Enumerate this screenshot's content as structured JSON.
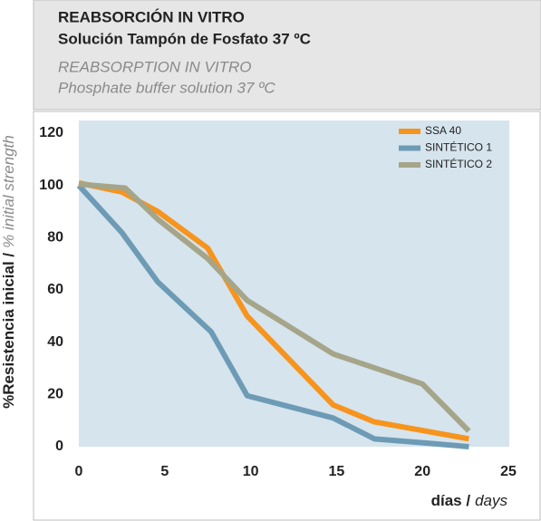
{
  "chart_data": {
    "type": "line",
    "title": "REABSORCIÓN IN VITRO",
    "subtitle": "Solución Tampón de Fosfato 37 ºC",
    "title_en": "REABSORPTION IN VITRO",
    "subtitle_en": "Phosphate buffer solution 37 ºC",
    "ylabel": "%Resistencia inicial /",
    "ylabel_en": "% initial strength",
    "xlabel": "días /",
    "xlabel_en": "days",
    "xlim": [
      0,
      25
    ],
    "xticks": [
      0,
      5,
      10,
      15,
      20,
      25
    ],
    "ylim": [
      0,
      120
    ],
    "yticks": [
      0,
      20,
      40,
      60,
      80,
      100,
      120
    ],
    "grid": false,
    "legend": "top-right",
    "series": [
      {
        "name": "SSA 40",
        "color": "#f7941d",
        "x": [
          0,
          2.5,
          4.6,
          7.5,
          9.8,
          14.8,
          17.2,
          22.7
        ],
        "values": [
          101,
          97.5,
          90,
          76,
          50,
          16,
          9.5,
          3
        ]
      },
      {
        "name": "SINTÉTICO 1",
        "color": "#6d9bb5",
        "x": [
          0,
          2.5,
          4.6,
          7.7,
          9.8,
          14.8,
          17.2,
          20,
          22.7
        ],
        "values": [
          100,
          82,
          63,
          44,
          19.5,
          11,
          3,
          1.5,
          0
        ]
      },
      {
        "name": "SINTÉTICO 2",
        "color": "#a5a58a",
        "x": [
          0,
          2.7,
          4.6,
          7.5,
          9.8,
          14.8,
          20,
          22.7
        ],
        "values": [
          100.5,
          99,
          87,
          72,
          56,
          35.5,
          24,
          6
        ]
      }
    ]
  }
}
